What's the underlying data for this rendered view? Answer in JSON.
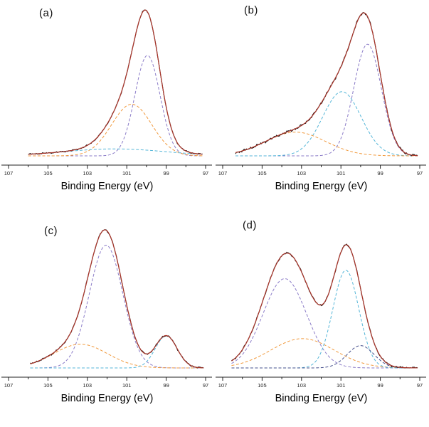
{
  "figure": {
    "background": "#ffffff",
    "axis_color": "#222222",
    "data_color": "#1a1a1a",
    "envelope_color": "#ab352a"
  },
  "chart_data": [
    {
      "type": "line",
      "panel_label": "(a)",
      "xlabel": "Binding Energy (eV)",
      "x_axis": {
        "range": [
          107,
          97
        ],
        "reversed": true,
        "tick_labels": [
          107,
          105,
          103,
          101,
          99,
          97
        ],
        "minor_tick_step": 1
      },
      "x_data_range": [
        106.0,
        97.15
      ],
      "series": [
        {
          "name": "raw-data",
          "style": "solid",
          "color": "#1a1a1a",
          "noise_amp": 0.007
        },
        {
          "name": "fit-envelope",
          "style": "solid",
          "color": "#ab352a"
        }
      ],
      "components": [
        {
          "name": "component-1",
          "style": "dashed",
          "color": "#8b7cc8",
          "center_eV": 99.95,
          "rel_amplitude": 0.72,
          "fwhm_eV": 1.5
        },
        {
          "name": "component-2",
          "style": "dashed",
          "color": "#f19a3e",
          "center_eV": 100.75,
          "rel_amplitude": 0.37,
          "fwhm_eV": 2.4
        },
        {
          "name": "component-3",
          "style": "dashed",
          "color": "#55b6d8",
          "center_eV": 101.6,
          "rel_amplitude": 0.05,
          "fwhm_eV": 6.0
        }
      ]
    },
    {
      "type": "line",
      "panel_label": "(b)",
      "xlabel": "Binding Energy (eV)",
      "x_axis": {
        "range": [
          107,
          97
        ],
        "reversed": true,
        "tick_labels": [
          107,
          105,
          103,
          101,
          99,
          97
        ],
        "minor_tick_step": 1
      },
      "x_data_range": [
        106.35,
        97.1
      ],
      "series": [
        {
          "name": "raw-data",
          "style": "solid",
          "color": "#1a1a1a",
          "noise_amp": 0.012
        },
        {
          "name": "fit-envelope",
          "style": "solid",
          "color": "#ab352a"
        }
      ],
      "components": [
        {
          "name": "component-1",
          "style": "dashed",
          "color": "#8b7cc8",
          "center_eV": 99.65,
          "rel_amplitude": 0.8,
          "fwhm_eV": 1.65
        },
        {
          "name": "component-2",
          "style": "dashed",
          "color": "#55b6d8",
          "center_eV": 100.95,
          "rel_amplitude": 0.46,
          "fwhm_eV": 2.3
        },
        {
          "name": "component-3",
          "style": "dashed",
          "color": "#f19a3e",
          "center_eV": 103.3,
          "rel_amplitude": 0.17,
          "fwhm_eV": 3.6
        }
      ]
    },
    {
      "type": "line",
      "panel_label": "(c)",
      "xlabel": "Binding Energy (eV)",
      "x_axis": {
        "range": [
          107,
          97
        ],
        "reversed": true,
        "tick_labels": [
          107,
          105,
          103,
          101,
          99,
          97
        ],
        "minor_tick_step": 1
      },
      "x_data_range": [
        105.9,
        97.1
      ],
      "series": [
        {
          "name": "raw-data",
          "style": "solid",
          "color": "#1a1a1a",
          "noise_amp": 0.008
        },
        {
          "name": "fit-envelope",
          "style": "solid",
          "color": "#ab352a"
        }
      ],
      "components": [
        {
          "name": "component-1",
          "style": "dashed",
          "color": "#8b7cc8",
          "center_eV": 102.05,
          "rel_amplitude": 0.88,
          "fwhm_eV": 2.0
        },
        {
          "name": "component-2",
          "style": "dashed",
          "color": "#f19a3e",
          "center_eV": 103.35,
          "rel_amplitude": 0.17,
          "fwhm_eV": 3.2
        },
        {
          "name": "component-3",
          "style": "dashed",
          "color": "#55b6d8",
          "center_eV": 99.0,
          "rel_amplitude": 0.23,
          "fwhm_eV": 1.3
        }
      ]
    },
    {
      "type": "line",
      "panel_label": "(d)",
      "xlabel": "Binding Energy (eV)",
      "x_axis": {
        "range": [
          107,
          97
        ],
        "reversed": true,
        "tick_labels": [
          107,
          105,
          103,
          101,
          99,
          97
        ],
        "minor_tick_step": 1
      },
      "x_data_range": [
        106.55,
        97.1
      ],
      "series": [
        {
          "name": "raw-data",
          "style": "solid",
          "color": "#1a1a1a",
          "noise_amp": 0.009
        },
        {
          "name": "fit-envelope",
          "style": "solid",
          "color": "#ab352a"
        }
      ],
      "components": [
        {
          "name": "component-1",
          "style": "dashed",
          "color": "#8b7cc8",
          "center_eV": 103.85,
          "rel_amplitude": 0.64,
          "fwhm_eV": 2.6
        },
        {
          "name": "component-2",
          "style": "dashed",
          "color": "#f19a3e",
          "center_eV": 102.95,
          "rel_amplitude": 0.21,
          "fwhm_eV": 3.8
        },
        {
          "name": "component-3",
          "style": "dashed",
          "color": "#55b6d8",
          "center_eV": 100.75,
          "rel_amplitude": 0.7,
          "fwhm_eV": 1.55
        },
        {
          "name": "component-4",
          "style": "dashed",
          "color": "#46508c",
          "center_eV": 100.0,
          "rel_amplitude": 0.16,
          "fwhm_eV": 1.6
        }
      ]
    }
  ]
}
